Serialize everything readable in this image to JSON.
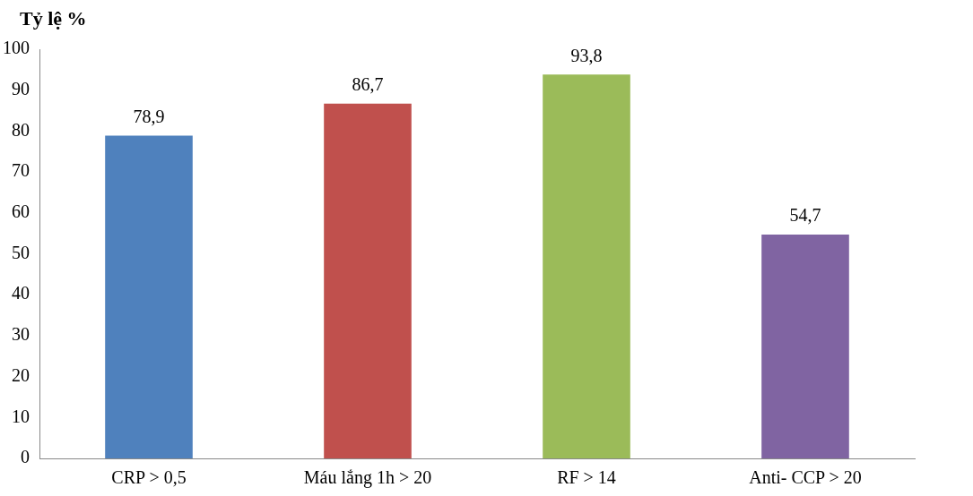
{
  "chart_data": {
    "type": "bar",
    "ylabel": "Tỷ lệ %",
    "categories": [
      "CRP > 0,5",
      "Máu lắng 1h > 20",
      "RF > 14",
      "Anti- CCP > 20"
    ],
    "values": [
      78.9,
      86.7,
      93.8,
      54.7
    ],
    "colors": [
      "#4f81bd",
      "#c0504d",
      "#9bbb59",
      "#8064a2"
    ],
    "value_labels": [
      "78,9",
      "86,7",
      "93,8",
      "54,7"
    ],
    "ylim": [
      0,
      100
    ],
    "yticks": [
      0,
      10,
      20,
      30,
      40,
      50,
      60,
      70,
      80,
      90,
      100
    ],
    "grid": false,
    "legend": false
  }
}
